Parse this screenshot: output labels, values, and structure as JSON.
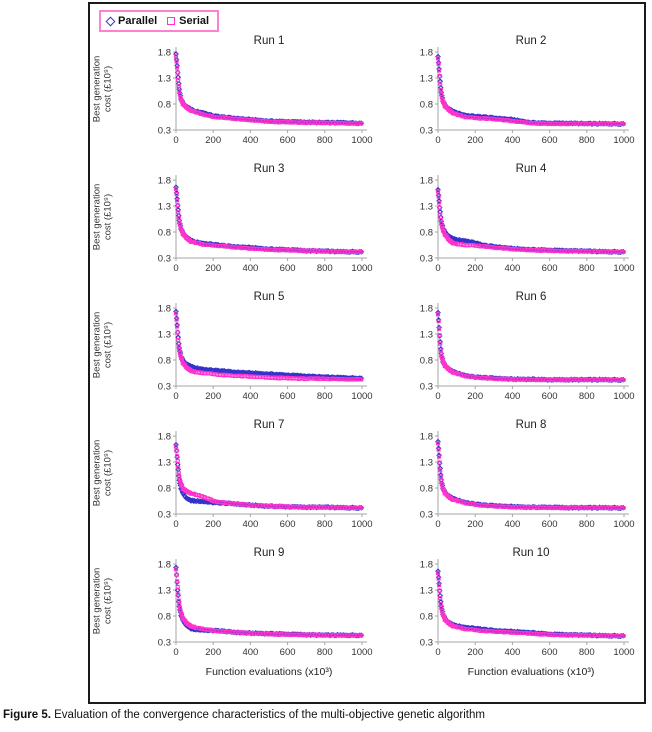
{
  "figure": {
    "caption_label": "Figure 5.",
    "caption_text": " Evaluation of the convergence characteristics of the multi-objective genetic algorithm"
  },
  "chart_data": {
    "type": "scatter",
    "title": "",
    "xlabel": "Function evaluations  (x10³)",
    "ylabel": "Best generation cost (£10⁹)",
    "ylabel_lines": [
      "Best generation",
      "cost (£10⁹)"
    ],
    "xlim": [
      0,
      1000
    ],
    "ylim": [
      0.3,
      1.8
    ],
    "xticks": [
      0,
      200,
      400,
      600,
      800,
      1000
    ],
    "yticks": [
      0.3,
      0.8,
      1.3,
      1.8
    ],
    "grid": false,
    "legend_position": "top-left",
    "legend_border": "#ff7fd0",
    "series_meta": [
      {
        "name": "Parallel",
        "marker": "diamond",
        "color": "#3333cc"
      },
      {
        "name": "Serial",
        "marker": "square",
        "color": "#ff33cc"
      }
    ],
    "x_sample": [
      0,
      5,
      10,
      15,
      20,
      30,
      40,
      60,
      80,
      100,
      150,
      200,
      250,
      300,
      400,
      500,
      600,
      700,
      800,
      900,
      1000
    ],
    "runs": [
      {
        "title": "Run 1",
        "parallel": [
          1.75,
          1.58,
          1.38,
          1.18,
          1.02,
          0.87,
          0.81,
          0.74,
          0.7,
          0.66,
          0.63,
          0.57,
          0.55,
          0.53,
          0.5,
          0.47,
          0.46,
          0.45,
          0.44,
          0.44,
          0.43
        ],
        "serial": [
          1.74,
          1.55,
          1.34,
          1.14,
          0.99,
          0.85,
          0.79,
          0.72,
          0.68,
          0.65,
          0.6,
          0.55,
          0.54,
          0.52,
          0.49,
          0.46,
          0.45,
          0.44,
          0.44,
          0.43,
          0.43
        ]
      },
      {
        "title": "Run 2",
        "parallel": [
          1.7,
          1.52,
          1.3,
          1.1,
          0.97,
          0.83,
          0.77,
          0.7,
          0.66,
          0.63,
          0.58,
          0.56,
          0.55,
          0.53,
          0.5,
          0.44,
          0.43,
          0.43,
          0.42,
          0.42,
          0.42
        ],
        "serial": [
          1.7,
          1.5,
          1.27,
          1.07,
          0.94,
          0.81,
          0.75,
          0.68,
          0.63,
          0.6,
          0.55,
          0.53,
          0.52,
          0.51,
          0.47,
          0.43,
          0.42,
          0.42,
          0.42,
          0.42,
          0.42
        ]
      },
      {
        "title": "Run 3",
        "parallel": [
          1.65,
          1.48,
          1.28,
          1.1,
          0.97,
          0.84,
          0.77,
          0.69,
          0.64,
          0.61,
          0.58,
          0.56,
          0.54,
          0.52,
          0.5,
          0.47,
          0.46,
          0.44,
          0.43,
          0.42,
          0.42
        ],
        "serial": [
          1.65,
          1.46,
          1.25,
          1.07,
          0.95,
          0.82,
          0.75,
          0.67,
          0.62,
          0.6,
          0.56,
          0.54,
          0.53,
          0.51,
          0.48,
          0.46,
          0.45,
          0.44,
          0.43,
          0.42,
          0.42
        ]
      },
      {
        "title": "Run 4",
        "parallel": [
          1.6,
          1.44,
          1.24,
          1.07,
          0.96,
          0.85,
          0.79,
          0.71,
          0.67,
          0.65,
          0.63,
          0.59,
          0.54,
          0.52,
          0.48,
          0.46,
          0.45,
          0.44,
          0.43,
          0.42,
          0.42
        ],
        "serial": [
          1.6,
          1.42,
          1.2,
          1.03,
          0.92,
          0.8,
          0.74,
          0.64,
          0.59,
          0.57,
          0.55,
          0.54,
          0.52,
          0.5,
          0.47,
          0.45,
          0.44,
          0.43,
          0.43,
          0.42,
          0.42
        ]
      },
      {
        "title": "Run 5",
        "parallel": [
          1.72,
          1.52,
          1.3,
          1.1,
          0.98,
          0.85,
          0.78,
          0.71,
          0.68,
          0.65,
          0.62,
          0.6,
          0.59,
          0.57,
          0.55,
          0.53,
          0.51,
          0.49,
          0.47,
          0.46,
          0.45
        ],
        "serial": [
          1.72,
          1.5,
          1.26,
          1.06,
          0.94,
          0.81,
          0.73,
          0.64,
          0.6,
          0.57,
          0.55,
          0.53,
          0.51,
          0.5,
          0.48,
          0.46,
          0.45,
          0.44,
          0.44,
          0.43,
          0.43
        ]
      },
      {
        "title": "Run 6",
        "parallel": [
          1.7,
          1.48,
          1.22,
          1.0,
          0.87,
          0.75,
          0.69,
          0.62,
          0.58,
          0.55,
          0.5,
          0.47,
          0.46,
          0.45,
          0.43,
          0.43,
          0.42,
          0.42,
          0.42,
          0.42,
          0.42
        ],
        "serial": [
          1.7,
          1.46,
          1.2,
          0.98,
          0.85,
          0.73,
          0.68,
          0.61,
          0.57,
          0.54,
          0.49,
          0.47,
          0.45,
          0.44,
          0.43,
          0.42,
          0.42,
          0.42,
          0.42,
          0.42,
          0.42
        ]
      },
      {
        "title": "Run 7",
        "parallel": [
          1.62,
          1.44,
          1.22,
          1.02,
          0.9,
          0.77,
          0.68,
          0.59,
          0.56,
          0.55,
          0.54,
          0.52,
          0.51,
          0.5,
          0.47,
          0.45,
          0.44,
          0.43,
          0.43,
          0.42,
          0.42
        ],
        "serial": [
          1.62,
          1.46,
          1.26,
          1.08,
          0.96,
          0.84,
          0.78,
          0.73,
          0.7,
          0.68,
          0.63,
          0.55,
          0.52,
          0.5,
          0.47,
          0.45,
          0.44,
          0.43,
          0.43,
          0.42,
          0.42
        ]
      },
      {
        "title": "Run 8",
        "parallel": [
          1.68,
          1.48,
          1.24,
          1.04,
          0.9,
          0.77,
          0.71,
          0.64,
          0.6,
          0.57,
          0.52,
          0.49,
          0.47,
          0.46,
          0.44,
          0.43,
          0.43,
          0.42,
          0.42,
          0.42,
          0.42
        ],
        "serial": [
          1.68,
          1.46,
          1.22,
          1.02,
          0.88,
          0.75,
          0.69,
          0.62,
          0.58,
          0.56,
          0.51,
          0.48,
          0.46,
          0.45,
          0.43,
          0.43,
          0.42,
          0.42,
          0.42,
          0.42,
          0.42
        ]
      },
      {
        "title": "Run 9",
        "parallel": [
          1.72,
          1.5,
          1.26,
          1.06,
          0.93,
          0.79,
          0.7,
          0.6,
          0.56,
          0.54,
          0.53,
          0.52,
          0.51,
          0.49,
          0.47,
          0.46,
          0.45,
          0.44,
          0.43,
          0.43,
          0.43
        ],
        "serial": [
          1.72,
          1.52,
          1.29,
          1.09,
          0.96,
          0.82,
          0.74,
          0.65,
          0.61,
          0.58,
          0.55,
          0.52,
          0.5,
          0.49,
          0.47,
          0.45,
          0.44,
          0.44,
          0.43,
          0.43,
          0.43
        ]
      },
      {
        "title": "Run 10",
        "parallel": [
          1.65,
          1.47,
          1.25,
          1.06,
          0.94,
          0.81,
          0.74,
          0.67,
          0.63,
          0.61,
          0.58,
          0.56,
          0.54,
          0.52,
          0.5,
          0.48,
          0.45,
          0.44,
          0.43,
          0.42,
          0.42
        ],
        "serial": [
          1.65,
          1.45,
          1.22,
          1.03,
          0.91,
          0.79,
          0.72,
          0.65,
          0.61,
          0.59,
          0.55,
          0.53,
          0.51,
          0.5,
          0.48,
          0.46,
          0.44,
          0.43,
          0.43,
          0.42,
          0.42
        ]
      }
    ]
  }
}
